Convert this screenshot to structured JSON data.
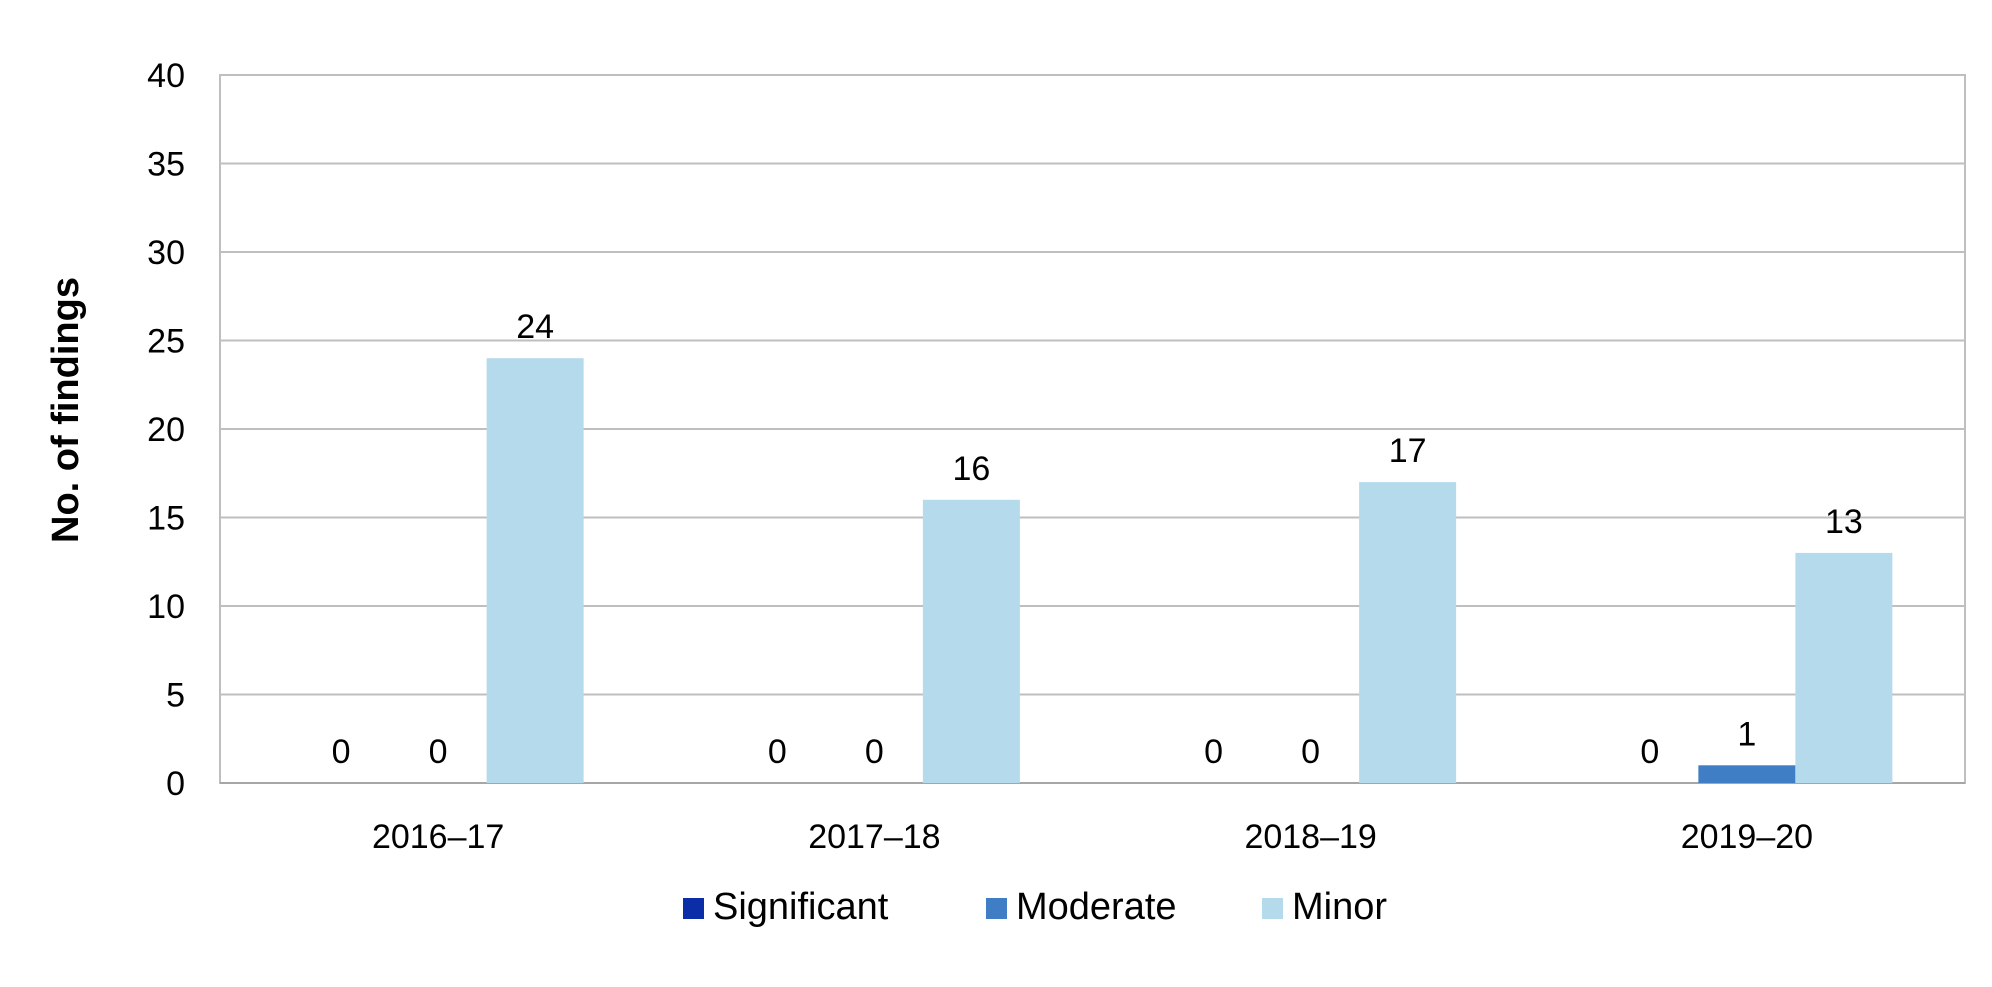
{
  "chart_data": {
    "type": "bar",
    "categories": [
      "2016–17",
      "2017–18",
      "2018–19",
      "2019–20"
    ],
    "series": [
      {
        "name": "Significant",
        "values": [
          0,
          0,
          0,
          0
        ],
        "color": "#0B2DA8",
        "labels": [
          "0",
          "0",
          "0",
          "0"
        ]
      },
      {
        "name": "Moderate",
        "values": [
          0,
          0,
          0,
          1
        ],
        "color": "#3F7EC4",
        "labels": [
          "0",
          "0",
          "0",
          "1"
        ]
      },
      {
        "name": "Minor",
        "values": [
          24,
          16,
          17,
          13
        ],
        "color": "#B5DAEC",
        "labels": [
          "24",
          "16",
          "17",
          "13"
        ]
      }
    ],
    "ylabel": "No. of findings",
    "xlabel": "",
    "ylim": [
      0,
      40
    ],
    "yticks": [
      "0",
      "5",
      "10",
      "15",
      "20",
      "25",
      "30",
      "35",
      "40"
    ],
    "grid": true,
    "legend_position": "bottom",
    "colors": {
      "grid": "#BFBFBF",
      "axis": "#A6A6A6"
    }
  }
}
